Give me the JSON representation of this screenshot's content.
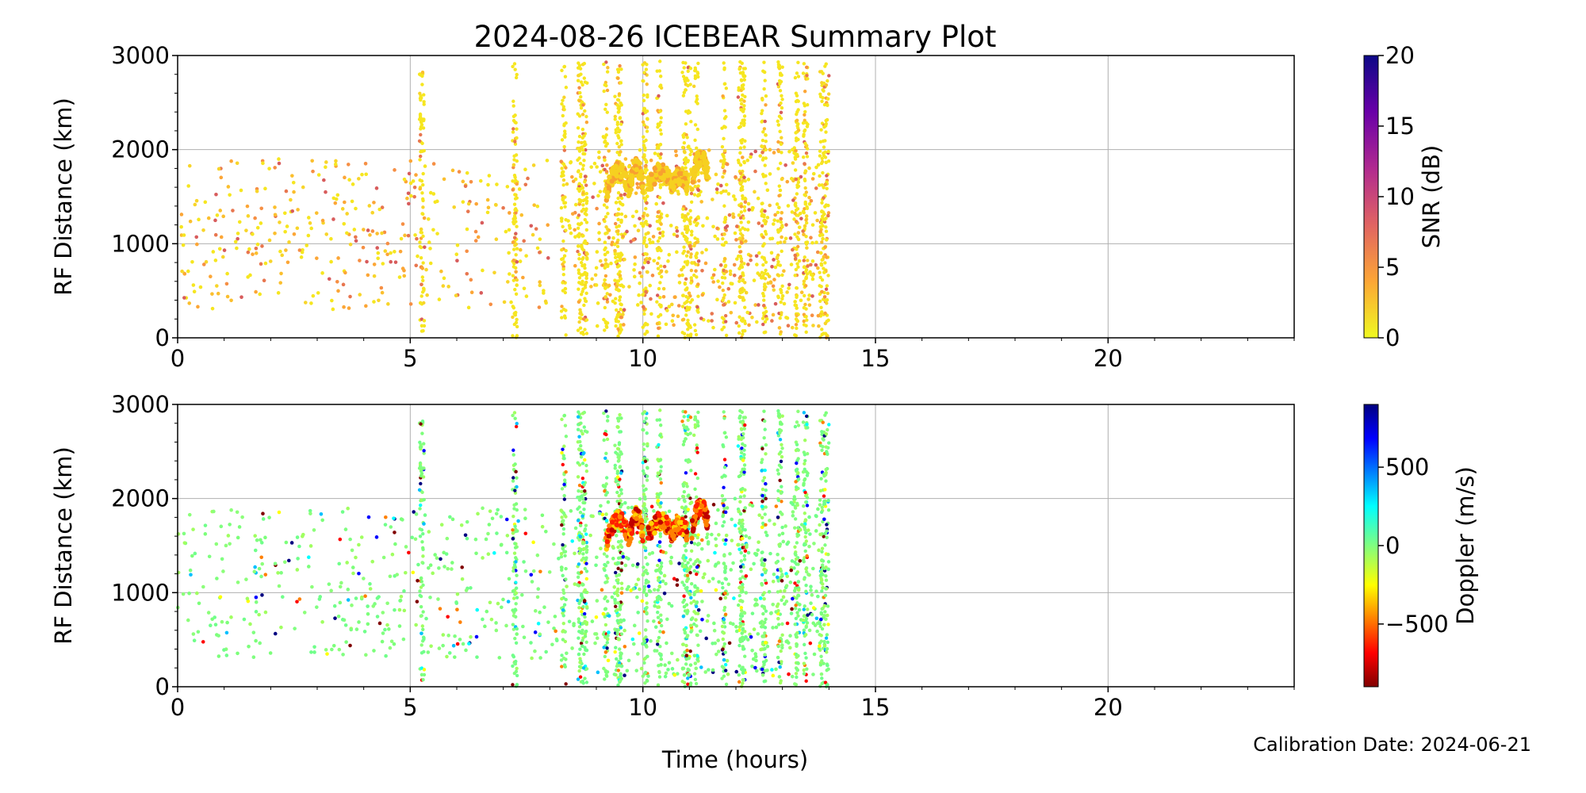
{
  "figure": {
    "title": "2024-08-26 ICEBEAR Summary Plot",
    "calibration_text": "Calibration Date: 2024-06-21"
  },
  "chart_data": [
    {
      "type": "scatter",
      "panel": "top",
      "title": "",
      "xlabel": "",
      "ylabel": "RF Distance (km)",
      "xlim": [
        0,
        24
      ],
      "ylim": [
        0,
        3000
      ],
      "xticks": [
        "0",
        "5",
        "10",
        "15",
        "20"
      ],
      "xtick_values": [
        0,
        5,
        10,
        15,
        20
      ],
      "yticks": [
        "0",
        "1000",
        "2000",
        "3000"
      ],
      "ytick_values": [
        0,
        1000,
        2000,
        3000
      ],
      "grid": true,
      "colorbar": {
        "label": "SNR (dB)",
        "range": [
          0,
          20
        ],
        "ticks": [
          "0",
          "5",
          "10",
          "15",
          "20"
        ],
        "tick_values": [
          0,
          5,
          10,
          15,
          20
        ],
        "colormap": "plasma_r"
      },
      "vertical_streaks_hours": [
        5.25,
        7.25,
        8.3,
        8.65,
        8.75,
        9.2,
        9.45,
        9.5,
        10.05,
        10.35,
        10.9,
        11.0,
        11.15,
        11.75,
        12.1,
        12.15,
        12.6,
        12.95,
        13.3,
        13.5,
        13.85,
        13.95
      ],
      "arc_segments": [
        {
          "x_start": 9.2,
          "x_end": 9.7,
          "y_start": 1500,
          "y_end": 1780
        },
        {
          "x_start": 9.7,
          "x_end": 10.0,
          "y_start": 1550,
          "y_end": 1820
        },
        {
          "x_start": 10.1,
          "x_end": 10.6,
          "y_start": 1600,
          "y_end": 1760
        },
        {
          "x_start": 10.6,
          "x_end": 10.95,
          "y_start": 1600,
          "y_end": 1720
        },
        {
          "x_start": 11.05,
          "x_end": 11.4,
          "y_start": 1650,
          "y_end": 1920
        }
      ],
      "scatter_ranges": [
        {
          "x_range": [
            0,
            9
          ],
          "y_range": [
            300,
            1900
          ]
        },
        {
          "x_range": [
            9,
            14
          ],
          "y_range": [
            100,
            2000
          ]
        }
      ]
    },
    {
      "type": "scatter",
      "panel": "bottom",
      "title": "",
      "xlabel": "Time (hours)",
      "ylabel": "RF Distance (km)",
      "xlim": [
        0,
        24
      ],
      "ylim": [
        0,
        3000
      ],
      "xticks": [
        "0",
        "5",
        "10",
        "15",
        "20"
      ],
      "xtick_values": [
        0,
        5,
        10,
        15,
        20
      ],
      "yticks": [
        "0",
        "1000",
        "2000",
        "3000"
      ],
      "ytick_values": [
        0,
        1000,
        2000,
        3000
      ],
      "grid": true,
      "colorbar": {
        "label": "Doppler (m/s)",
        "range": [
          -900,
          900
        ],
        "ticks": [
          "−500",
          "0",
          "500"
        ],
        "tick_values": [
          -500,
          0,
          500
        ],
        "colormap": "jet_r"
      },
      "vertical_streaks_hours": [
        5.25,
        7.25,
        8.3,
        8.65,
        8.75,
        9.2,
        9.45,
        9.5,
        10.05,
        10.35,
        10.9,
        11.0,
        11.15,
        11.75,
        12.1,
        12.15,
        12.6,
        12.95,
        13.3,
        13.5,
        13.85,
        13.95
      ],
      "arc_segments": [
        {
          "x_start": 9.2,
          "x_end": 9.7,
          "y_start": 1500,
          "y_end": 1780
        },
        {
          "x_start": 9.7,
          "x_end": 10.0,
          "y_start": 1550,
          "y_end": 1820
        },
        {
          "x_start": 10.1,
          "x_end": 10.6,
          "y_start": 1600,
          "y_end": 1760
        },
        {
          "x_start": 10.6,
          "x_end": 10.95,
          "y_start": 1600,
          "y_end": 1720
        },
        {
          "x_start": 11.05,
          "x_end": 11.4,
          "y_start": 1650,
          "y_end": 1920
        }
      ],
      "scatter_ranges": [
        {
          "x_range": [
            0,
            9
          ],
          "y_range": [
            300,
            1900
          ]
        },
        {
          "x_range": [
            9,
            14
          ],
          "y_range": [
            100,
            2000
          ]
        }
      ]
    }
  ]
}
